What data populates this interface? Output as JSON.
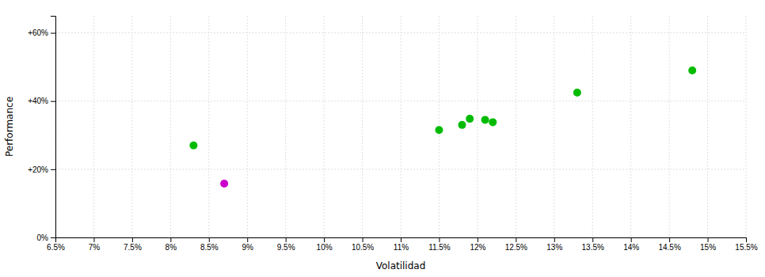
{
  "chart_data": {
    "type": "scatter",
    "xlabel": "Volatilidad",
    "ylabel": "Performance",
    "xlim": [
      0.065,
      0.155
    ],
    "ylim": [
      0.0,
      0.65
    ],
    "xticks": [
      {
        "value": 0.065,
        "label": "6.5%"
      },
      {
        "value": 0.07,
        "label": "7%"
      },
      {
        "value": 0.075,
        "label": "7.5%"
      },
      {
        "value": 0.08,
        "label": "8%"
      },
      {
        "value": 0.085,
        "label": "8.5%"
      },
      {
        "value": 0.09,
        "label": "9%"
      },
      {
        "value": 0.095,
        "label": "9.5%"
      },
      {
        "value": 0.1,
        "label": "10%"
      },
      {
        "value": 0.105,
        "label": "10.5%"
      },
      {
        "value": 0.11,
        "label": "11%"
      },
      {
        "value": 0.115,
        "label": "11.5%"
      },
      {
        "value": 0.12,
        "label": "12%"
      },
      {
        "value": 0.125,
        "label": "12.5%"
      },
      {
        "value": 0.13,
        "label": "13%"
      },
      {
        "value": 0.135,
        "label": "13.5%"
      },
      {
        "value": 0.14,
        "label": "14%"
      },
      {
        "value": 0.145,
        "label": "14.5%"
      },
      {
        "value": 0.15,
        "label": "15%"
      },
      {
        "value": 0.155,
        "label": "15.5%"
      }
    ],
    "yticks": [
      {
        "value": 0.0,
        "label": "0%"
      },
      {
        "value": 0.2,
        "label": "+20%"
      },
      {
        "value": 0.4,
        "label": "+40%"
      },
      {
        "value": 0.6,
        "label": "+60%"
      }
    ],
    "grid": true,
    "series": [
      {
        "color": "#00bb00",
        "x": [
          0.083,
          0.115,
          0.118,
          0.119,
          0.121,
          0.122,
          0.133,
          0.148
        ],
        "values": [
          0.27,
          0.315,
          0.33,
          0.348,
          0.345,
          0.338,
          0.425,
          0.49
        ]
      },
      {
        "color": "#cc00cc",
        "x": [
          0.087
        ],
        "values": [
          0.158
        ]
      }
    ]
  }
}
